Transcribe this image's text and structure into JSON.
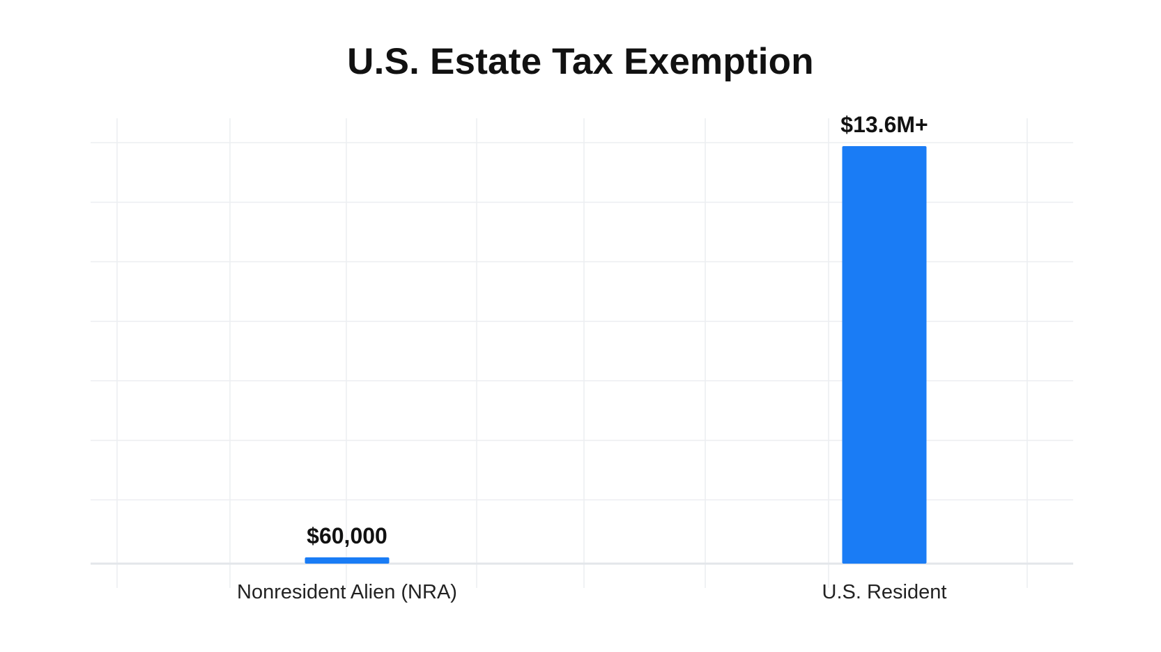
{
  "chart_data": {
    "type": "bar",
    "title": "U.S. Estate Tax Exemption",
    "xlabel": "",
    "ylabel": "",
    "categories": [
      "Nonresident Alien (NRA)",
      "U.S. Resident"
    ],
    "values": [
      60000,
      13600000
    ],
    "data_labels": [
      "$60,000",
      "$13.6M+"
    ],
    "ylim": [
      0,
      13600000
    ],
    "grid": true,
    "bar_color": "#1a7cf5",
    "grid_color": "#eceef1",
    "axis_color": "#e3e6ea"
  }
}
